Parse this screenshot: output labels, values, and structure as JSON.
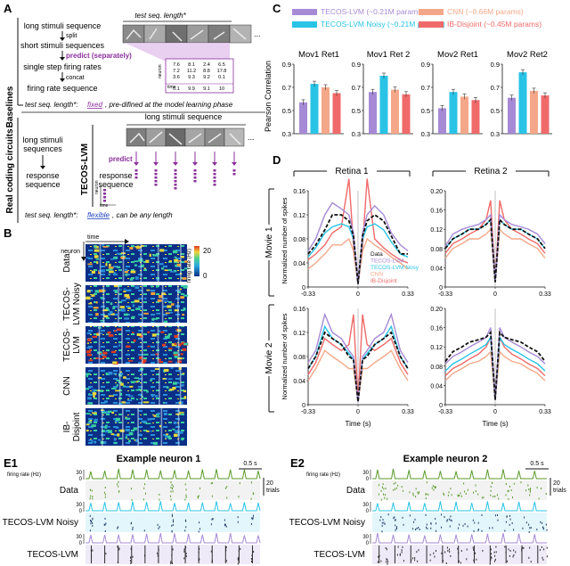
{
  "panels": {
    "A": "A",
    "B": "B",
    "C": "C",
    "D": "D",
    "E1": "E1",
    "E2": "E2"
  },
  "colors": {
    "data": "#111111",
    "tecos_lvm": "#a68ad6",
    "tecos_lvm_noisy": "#29c3e6",
    "cnn": "#f4a889",
    "ib_disjoint": "#f06a6a",
    "purple_text": "#8b2f9c",
    "heat_bg": "#0b2f86"
  },
  "panelA": {
    "baselines_label": "Baselines",
    "real_label": "Real coding circuits",
    "tecos_label": "TECOS-LVM",
    "flow": {
      "long_seq": "long stimuli sequence",
      "split": "split",
      "short_seq": "short stimuli sequences",
      "predict_sep": "predict (separately)",
      "single_step": "single step firing rates",
      "concat": "concat",
      "firing_seq": "firing rate sequence"
    },
    "test_len_top": "test seq. length*",
    "note_fixed_prefix": "test seq. length*:",
    "note_fixed_word": "fixed",
    "note_fixed_suffix": ", pre-difined at the model learning phase",
    "table_rows": [
      [
        "7.6",
        "8.1",
        "2.4",
        "6.5"
      ],
      [
        "7.2",
        "11.2",
        "8.8",
        "17.8"
      ],
      [
        "3.6",
        "9.3",
        "9.2",
        "0.1"
      ],
      [
        "0.1",
        "9.9",
        "9.1",
        "10"
      ]
    ],
    "table_axis_y": "neuron",
    "table_axis_x": "time",
    "real_long": "long stimuli",
    "real_seq": "sequences",
    "real_resp": "response",
    "real_respseq": "sequence",
    "tecos_long": "long stimuli sequence",
    "tecos_predict": "predict",
    "tecos_resp": "response",
    "tecos_respseq": "sequence",
    "spk_axis_y": "neuron",
    "spk_axis_x": "time",
    "note_flex_prefix": "test seq. length*:",
    "note_flex_word": "flexible",
    "note_flex_suffix": ", can be any length",
    "ellipsis": "..."
  },
  "panelB": {
    "time_label": "time",
    "neuron_label": "neuron",
    "cbar_label": "firing rate (Hz)",
    "cbar_max": "20",
    "cbar_min": "0",
    "rows": [
      {
        "label": "Data"
      },
      {
        "label": "TECOS-LVM Noisy"
      },
      {
        "label": "TECOS-LVM"
      },
      {
        "label": "CNN"
      },
      {
        "label": "IB-Disjoint"
      }
    ]
  },
  "panelC": {
    "legend": [
      {
        "name": "TECOS-LVM (~0.21M params)",
        "color": "#a68ad6"
      },
      {
        "name": "CNN (~0.66M params)",
        "color": "#f4a889"
      },
      {
        "name": "TECOS-LVM Noisy (~0.21M params)",
        "color": "#29c3e6"
      },
      {
        "name": "IB-Disjoint (~0.45M params)",
        "color": "#f06a6a"
      }
    ],
    "ylabel": "Pearson Correlation",
    "yticks": [
      "0.3",
      "0.5",
      "0.7",
      "0.9"
    ]
  },
  "chart_data": [
    {
      "type": "bar",
      "title": "Mov1 Ret1",
      "categories": [
        "TECOS-LVM",
        "TECOS-LVM Noisy",
        "CNN",
        "IB-Disjoint"
      ],
      "values": [
        0.57,
        0.73,
        0.7,
        0.65
      ],
      "ylabel": "Pearson Correlation",
      "ylim": [
        0.3,
        0.9
      ]
    },
    {
      "type": "bar",
      "title": "Mov1 Ret 2",
      "categories": [
        "TECOS-LVM",
        "TECOS-LVM Noisy",
        "CNN",
        "IB-Disjoint"
      ],
      "values": [
        0.66,
        0.8,
        0.68,
        0.64
      ],
      "ylim": [
        0.3,
        0.9
      ]
    },
    {
      "type": "bar",
      "title": "Mov2 Ret1",
      "categories": [
        "TECOS-LVM",
        "TECOS-LVM Noisy",
        "CNN",
        "IB-Disjoint"
      ],
      "values": [
        0.52,
        0.66,
        0.62,
        0.59
      ],
      "ylim": [
        0.3,
        0.9
      ]
    },
    {
      "type": "bar",
      "title": "Mov2 Ret2",
      "categories": [
        "TECOS-LVM",
        "TECOS-LVM Noisy",
        "CNN",
        "IB-Disjoint"
      ],
      "values": [
        0.61,
        0.83,
        0.67,
        0.63
      ],
      "ylim": [
        0.3,
        0.9
      ]
    },
    {
      "type": "line",
      "panel": "D",
      "row": "Movie 1",
      "col": "Retina 1",
      "x": [
        -0.33,
        -0.28,
        -0.22,
        -0.17,
        -0.11,
        -0.06,
        -0.03,
        0,
        0.03,
        0.06,
        0.11,
        0.17,
        0.22,
        0.28,
        0.33
      ],
      "ylim": [
        0,
        0.16
      ],
      "series": [
        {
          "name": "Data",
          "style": "dashed",
          "values": [
            0.055,
            0.07,
            0.095,
            0.12,
            0.12,
            0.11,
            0.085,
            0.005,
            0.085,
            0.11,
            0.12,
            0.11,
            0.085,
            0.055,
            0.055
          ]
        },
        {
          "name": "TECOS-LVM",
          "values": [
            0.06,
            0.08,
            0.12,
            0.14,
            0.13,
            0.12,
            0.09,
            0.005,
            0.09,
            0.12,
            0.135,
            0.12,
            0.09,
            0.07,
            0.06
          ]
        },
        {
          "name": "TECOS-LVM Nosy",
          "values": [
            0.05,
            0.065,
            0.09,
            0.1,
            0.105,
            0.1,
            0.08,
            0.005,
            0.08,
            0.1,
            0.105,
            0.095,
            0.075,
            0.055,
            0.05
          ]
        },
        {
          "name": "CNN",
          "values": [
            0.03,
            0.04,
            0.055,
            0.07,
            0.07,
            0.08,
            0.06,
            0.005,
            0.06,
            0.08,
            0.07,
            0.06,
            0.05,
            0.04,
            0.03
          ]
        },
        {
          "name": "IB-Disjoint",
          "values": [
            0.045,
            0.055,
            0.07,
            0.09,
            0.1,
            0.18,
            0.07,
            0.005,
            0.07,
            0.18,
            0.08,
            0.065,
            0.055,
            0.045,
            0.04
          ]
        }
      ]
    },
    {
      "type": "line",
      "panel": "D",
      "row": "Movie 1",
      "col": "Retina 2",
      "x": [
        -0.33,
        -0.28,
        -0.22,
        -0.17,
        -0.11,
        -0.06,
        -0.03,
        0,
        0.03,
        0.06,
        0.11,
        0.17,
        0.22,
        0.28,
        0.33
      ],
      "ylim": [
        0,
        0.2
      ],
      "series": [
        {
          "name": "Data",
          "style": "dashed",
          "values": [
            0.08,
            0.1,
            0.11,
            0.12,
            0.12,
            0.13,
            0.14,
            0.01,
            0.14,
            0.13,
            0.12,
            0.12,
            0.11,
            0.1,
            0.08
          ]
        },
        {
          "name": "TECOS-LVM",
          "values": [
            0.085,
            0.11,
            0.12,
            0.125,
            0.13,
            0.14,
            0.15,
            0.01,
            0.15,
            0.14,
            0.13,
            0.125,
            0.12,
            0.11,
            0.09
          ]
        },
        {
          "name": "TECOS-LVM Nosy",
          "values": [
            0.08,
            0.1,
            0.11,
            0.12,
            0.12,
            0.13,
            0.14,
            0.01,
            0.14,
            0.13,
            0.12,
            0.12,
            0.11,
            0.1,
            0.08
          ]
        },
        {
          "name": "CNN",
          "values": [
            0.06,
            0.08,
            0.09,
            0.1,
            0.1,
            0.11,
            0.12,
            0.01,
            0.12,
            0.11,
            0.1,
            0.1,
            0.09,
            0.08,
            0.06
          ]
        },
        {
          "name": "IB-Disjoint",
          "values": [
            0.07,
            0.09,
            0.1,
            0.11,
            0.12,
            0.14,
            0.18,
            0.01,
            0.18,
            0.14,
            0.12,
            0.11,
            0.1,
            0.09,
            0.07
          ]
        }
      ]
    },
    {
      "type": "line",
      "panel": "D",
      "row": "Movie 2",
      "col": "Retina 1",
      "x": [
        -0.33,
        -0.28,
        -0.22,
        -0.17,
        -0.11,
        -0.06,
        -0.03,
        0,
        0.03,
        0.06,
        0.11,
        0.17,
        0.22,
        0.28,
        0.33
      ],
      "ylim": [
        0,
        0.16
      ],
      "series": [
        {
          "name": "Data",
          "style": "dashed",
          "values": [
            0.06,
            0.08,
            0.12,
            0.11,
            0.1,
            0.08,
            0.075,
            0.005,
            0.075,
            0.08,
            0.1,
            0.11,
            0.12,
            0.08,
            0.06
          ]
        },
        {
          "name": "TECOS-LVM",
          "values": [
            0.07,
            0.09,
            0.15,
            0.12,
            0.11,
            0.09,
            0.08,
            0.005,
            0.08,
            0.09,
            0.11,
            0.12,
            0.15,
            0.09,
            0.07
          ]
        },
        {
          "name": "TECOS-LVM Nosy",
          "values": [
            0.06,
            0.08,
            0.13,
            0.11,
            0.1,
            0.085,
            0.075,
            0.005,
            0.075,
            0.085,
            0.1,
            0.11,
            0.13,
            0.08,
            0.06
          ]
        },
        {
          "name": "CNN",
          "values": [
            0.04,
            0.06,
            0.09,
            0.08,
            0.07,
            0.06,
            0.06,
            0.005,
            0.06,
            0.06,
            0.07,
            0.08,
            0.09,
            0.06,
            0.04
          ]
        },
        {
          "name": "IB-Disjoint",
          "values": [
            0.05,
            0.07,
            0.11,
            0.1,
            0.09,
            0.1,
            0.15,
            0.005,
            0.15,
            0.1,
            0.09,
            0.1,
            0.11,
            0.07,
            0.05
          ]
        }
      ]
    },
    {
      "type": "line",
      "panel": "D",
      "row": "Movie 2",
      "col": "Retina 2",
      "x": [
        -0.33,
        -0.28,
        -0.22,
        -0.17,
        -0.11,
        -0.06,
        -0.03,
        0,
        0.03,
        0.06,
        0.11,
        0.17,
        0.22,
        0.28,
        0.33
      ],
      "ylim": [
        0,
        0.2
      ],
      "series": [
        {
          "name": "Data",
          "style": "dashed",
          "values": [
            0.09,
            0.11,
            0.12,
            0.13,
            0.135,
            0.14,
            0.15,
            0.01,
            0.15,
            0.14,
            0.135,
            0.13,
            0.12,
            0.11,
            0.09
          ]
        },
        {
          "name": "TECOS-LVM",
          "values": [
            0.085,
            0.1,
            0.11,
            0.12,
            0.13,
            0.14,
            0.16,
            0.01,
            0.16,
            0.14,
            0.13,
            0.12,
            0.11,
            0.1,
            0.085
          ]
        },
        {
          "name": "TECOS-LVM Nosy",
          "values": [
            0.07,
            0.085,
            0.095,
            0.105,
            0.115,
            0.125,
            0.14,
            0.01,
            0.14,
            0.125,
            0.115,
            0.105,
            0.095,
            0.085,
            0.07
          ]
        },
        {
          "name": "CNN",
          "values": [
            0.05,
            0.065,
            0.075,
            0.085,
            0.09,
            0.1,
            0.11,
            0.01,
            0.11,
            0.1,
            0.09,
            0.085,
            0.075,
            0.065,
            0.05
          ]
        },
        {
          "name": "IB-Disjoint",
          "values": [
            0.06,
            0.075,
            0.085,
            0.095,
            0.105,
            0.12,
            0.14,
            0.01,
            0.14,
            0.12,
            0.105,
            0.095,
            0.085,
            0.075,
            0.06
          ]
        }
      ]
    }
  ],
  "panelCTitles": [
    "Mov1 Ret1",
    "Mov1 Ret 2",
    "Mov2 Ret1",
    "Mov2 Ret2"
  ],
  "panelD": {
    "col_titles": [
      "Retina 1",
      "Retina 2"
    ],
    "row_titles": [
      "Movie 1",
      "Movie 2"
    ],
    "ylabel": "Normalized number of spikes",
    "xlabel": "Time (s)",
    "xticks": [
      "-0.33",
      "0",
      "0.33"
    ],
    "yticks_r1": [
      "0",
      "0.04",
      "0.08",
      "0.12",
      "0.16"
    ],
    "yticks_r2": [
      "0",
      "0.04",
      "0.08",
      "0.12",
      "0.16",
      "0.20"
    ],
    "legend": [
      {
        "name": "Data",
        "color": "#111111"
      },
      {
        "name": "TECOS-LVM",
        "color": "#a68ad6"
      },
      {
        "name": "TECOS-LVM Nosy",
        "color": "#29c3e6"
      },
      {
        "name": "CNN",
        "color": "#f4a889"
      },
      {
        "name": "IB-Disjoint",
        "color": "#f06a6a"
      }
    ]
  },
  "panelE": {
    "e1_title": "Example neuron 1",
    "e2_title": "Example neuron 2",
    "scale_time": "0.5 s",
    "scale_trials_n": "20",
    "scale_trials_w": "trials",
    "rate_label": "firing rate (Hz)",
    "rate_max": "30",
    "rate_min": "0",
    "rows": [
      {
        "label": "Data"
      },
      {
        "label": "TECOS-LVM Noisy"
      },
      {
        "label": "TECOS-LVM"
      }
    ]
  }
}
